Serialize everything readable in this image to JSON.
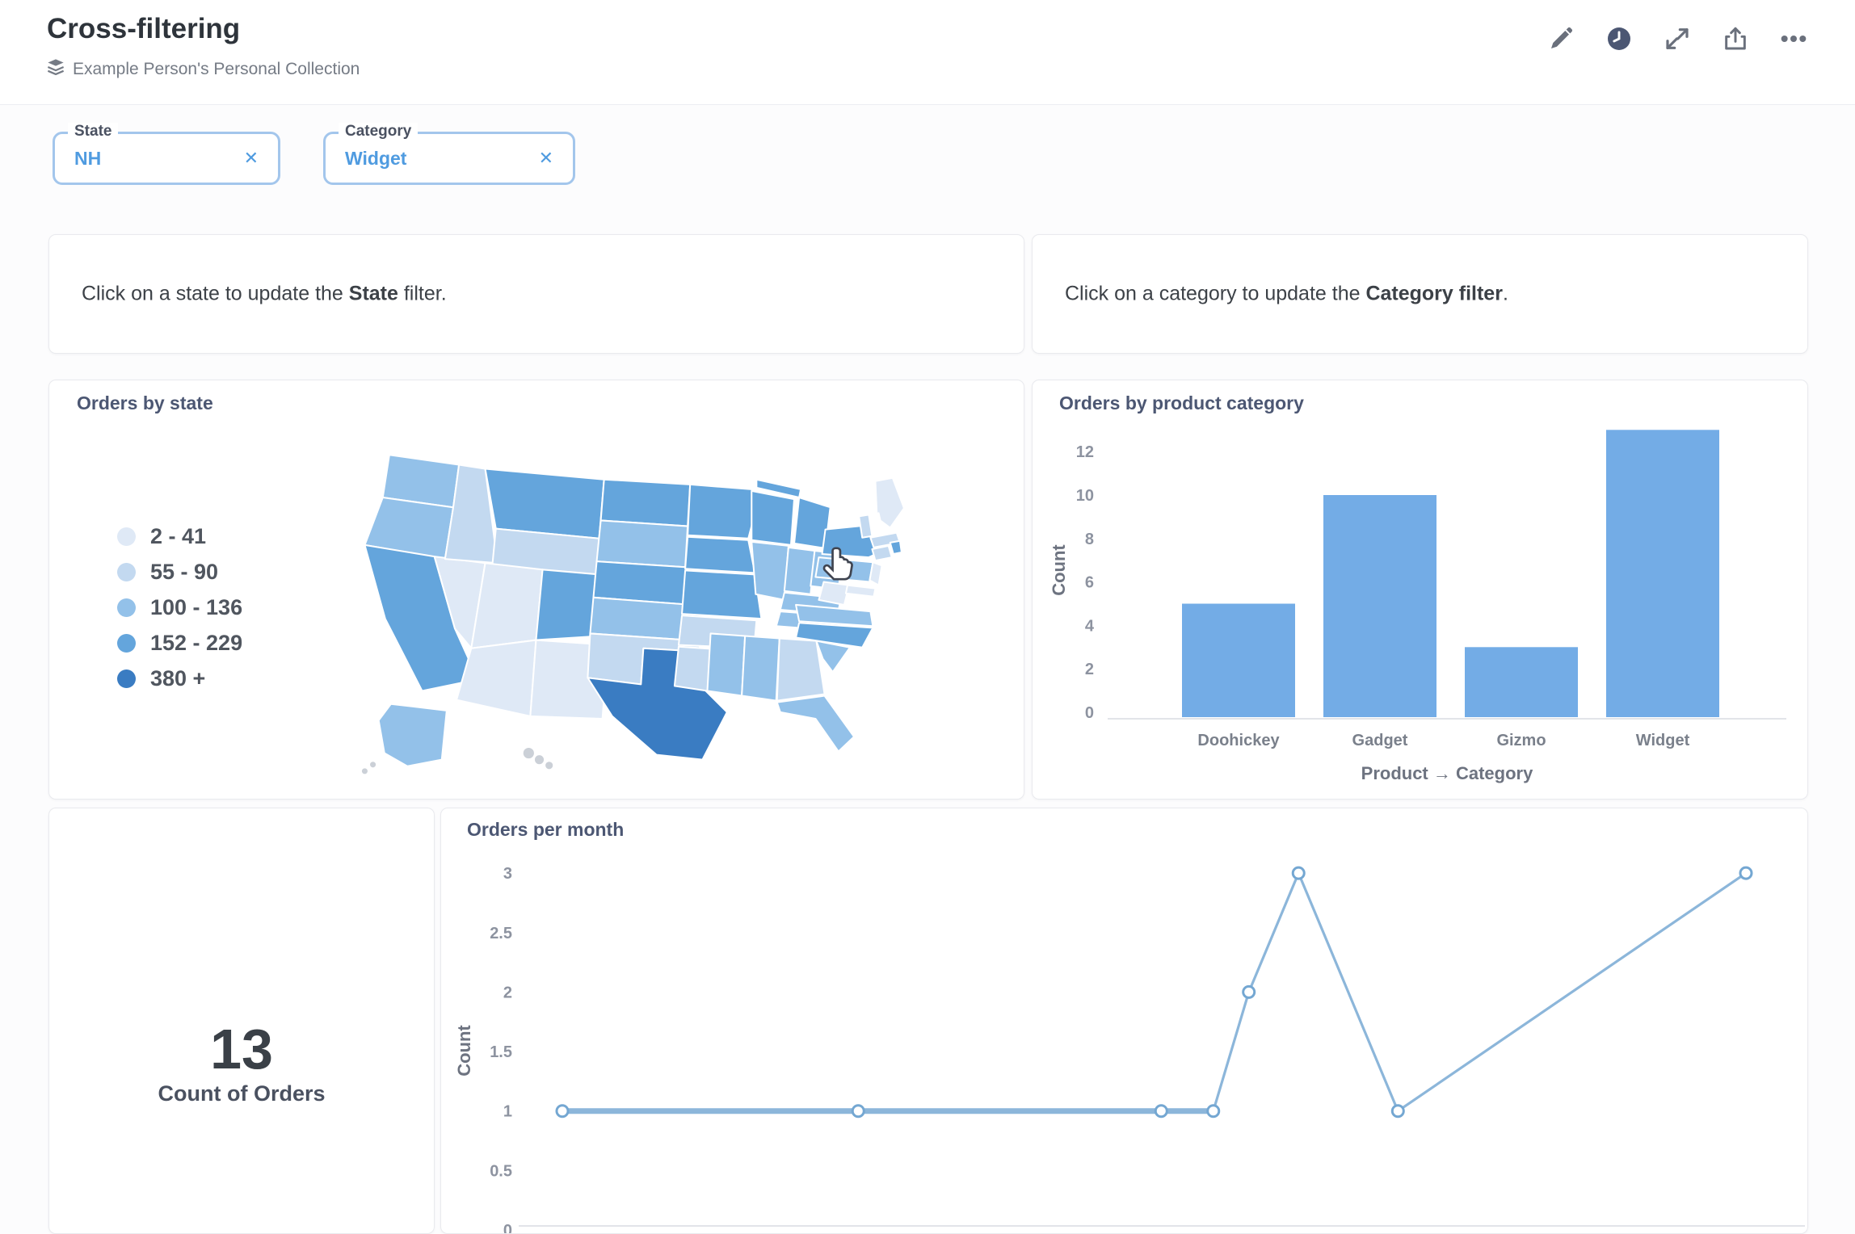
{
  "header": {
    "title": "Cross-filtering",
    "collection": "Example Person's Personal Collection",
    "actions": [
      "edit",
      "history",
      "fullscreen",
      "share",
      "more"
    ]
  },
  "ui": {
    "close_glyph": "✕"
  },
  "filters": [
    {
      "label": "State",
      "value": "NH"
    },
    {
      "label": "Category",
      "value": "Widget"
    }
  ],
  "text_cards": [
    {
      "prefix": "Click on a state to update the ",
      "bold": "State",
      "suffix": " filter."
    },
    {
      "prefix": "Click on a category to update the ",
      "bold": "Category filter",
      "suffix": "."
    }
  ],
  "scalar_card": {
    "value": "13",
    "label": "Count of Orders"
  },
  "chart_data": [
    {
      "type": "choropleth_map",
      "title": "Orders by state",
      "legend": [
        {
          "label": "2 - 41",
          "color": "#dfe9f6"
        },
        {
          "label": "55 - 90",
          "color": "#c3d9f0"
        },
        {
          "label": "100 - 136",
          "color": "#93c1e9"
        },
        {
          "label": "152 - 229",
          "color": "#64a5dc"
        },
        {
          "label": "380 +",
          "color": "#3a7cc2"
        }
      ],
      "palette": [
        "#ffffff",
        "#dfe9f6",
        "#c3d9f0",
        "#93c1e9",
        "#64a5dc",
        "#3a7cc2"
      ],
      "no_data_color": "#cbd0d7",
      "state_buckets": {
        "WA": 3,
        "OR": 3,
        "CA": 4,
        "NV": 1,
        "ID": 2,
        "MT": 4,
        "WY": 2,
        "UT": 1,
        "CO": 4,
        "AZ": 1,
        "NM": 1,
        "ND": 4,
        "SD": 3,
        "NE": 4,
        "KS": 3,
        "OK": 2,
        "TX": 5,
        "MN": 4,
        "IA": 4,
        "MO": 4,
        "AR": 2,
        "LA": 2,
        "WI": 4,
        "IL": 3,
        "MIUP": 4,
        "MI": 4,
        "IN": 3,
        "OH": 3,
        "KY": 3,
        "TN": 3,
        "MS": 3,
        "AL": 3,
        "GA": 2,
        "FL": 3,
        "SC": 3,
        "NC": 4,
        "VA": 3,
        "WV": 1,
        "PA": 3,
        "NY": 4,
        "NJ": 1,
        "MD": 1,
        "ME": 1,
        "NH": 0,
        "VT": 2,
        "MA": 2,
        "CT": 2,
        "RI": 4,
        "AK": 3,
        "HI": -1
      }
    },
    {
      "type": "bar",
      "title": "Orders by product category",
      "categories": [
        "Doohickey",
        "Gadget",
        "Gizmo",
        "Widget"
      ],
      "values": [
        5,
        10,
        3,
        13
      ],
      "xlabel": "Product → Category",
      "ylabel": "Count",
      "yticks": [
        0,
        2,
        4,
        6,
        8,
        10,
        12
      ],
      "ylim": [
        0,
        13
      ],
      "bar_color": "#73ace6",
      "grid": false,
      "legend_position": "none"
    },
    {
      "type": "line",
      "title": "Orders per month",
      "ylabel": "Count",
      "yticks": [
        0,
        0.5,
        1,
        1.5,
        2,
        2.5,
        3
      ],
      "ylim": [
        0,
        3
      ],
      "line_color": "#8cb6da",
      "marker_stroke": "#74a7d2",
      "grid": false,
      "points": [
        {
          "x_frac": 0.0,
          "y": 1
        },
        {
          "x_frac": 0.25,
          "y": 1
        },
        {
          "x_frac": 0.506,
          "y": 1
        },
        {
          "x_frac": 0.55,
          "y": 1
        },
        {
          "x_frac": 0.58,
          "y": 2
        },
        {
          "x_frac": 0.622,
          "y": 3
        },
        {
          "x_frac": 0.706,
          "y": 1
        },
        {
          "x_frac": 1.0,
          "y": 3
        }
      ]
    },
    {
      "type": "scalar",
      "value": 13,
      "label": "Count of Orders"
    }
  ]
}
